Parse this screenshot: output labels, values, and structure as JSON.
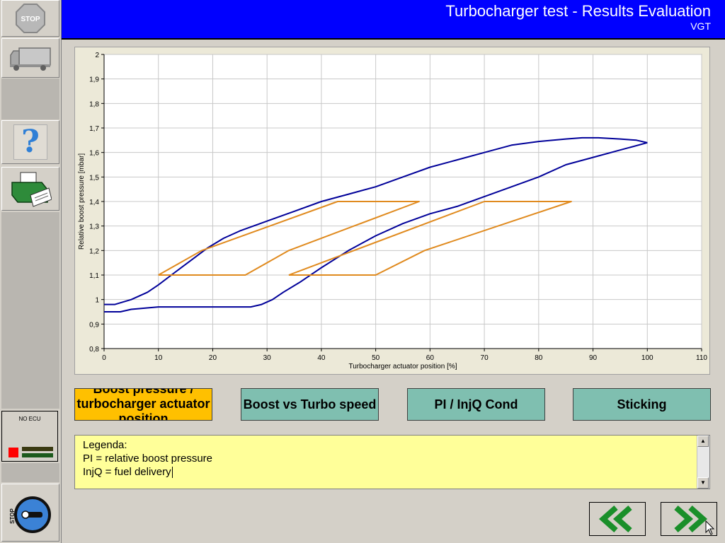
{
  "header": {
    "title": "Turbocharger test - Results Evaluation",
    "subtitle": "VGT",
    "background": "#0000ff"
  },
  "sidebar": {
    "stop_label": "STOP",
    "help_glyph": "?",
    "ecu_label": "NO ECU",
    "bottom_stop_label": "STOP"
  },
  "tabs": [
    {
      "label": "Boost pressure / turbocharger actuator position",
      "active": true
    },
    {
      "label": "Boost vs Turbo speed",
      "active": false
    },
    {
      "label": "PI / InjQ Cond",
      "active": false
    },
    {
      "label": "Sticking",
      "active": false
    }
  ],
  "legend": {
    "lines": [
      "Legenda:",
      "PI = relative boost pressure",
      "InjQ = fuel delivery"
    ]
  },
  "colors": {
    "measured": "#000099",
    "tolerance": "#e08a1e",
    "tab": "#7fbfb0",
    "tab_active": "#ffc000",
    "legend_bg": "#ffff99"
  },
  "chart_data": {
    "type": "line",
    "xlabel": "Turbocharger actuator position [%]",
    "ylabel": "Relative boost pressure [mbar]",
    "xlim": [
      0,
      110
    ],
    "ylim": [
      0.8,
      2
    ],
    "xticks": [
      0,
      10,
      20,
      30,
      40,
      50,
      60,
      70,
      80,
      90,
      100,
      110
    ],
    "yticks": [
      0.8,
      0.9,
      1,
      1.1,
      1.2,
      1.3,
      1.4,
      1.5,
      1.6,
      1.7,
      1.8,
      1.9,
      2
    ],
    "ytick_labels": [
      "0,8",
      "0,9",
      "1",
      "1,1",
      "1,2",
      "1,3",
      "1,4",
      "1,5",
      "1,6",
      "1,7",
      "1,8",
      "1,9",
      "2"
    ],
    "grid": true,
    "series": [
      {
        "color": "#000099",
        "x": [
          0,
          2,
          5,
          8,
          10,
          13,
          16,
          19,
          22,
          25,
          30,
          35,
          40,
          45,
          50,
          55,
          60,
          65,
          70,
          75,
          80,
          85,
          88,
          91,
          95,
          98,
          100
        ],
        "y": [
          0.98,
          0.98,
          1.0,
          1.03,
          1.06,
          1.11,
          1.16,
          1.21,
          1.25,
          1.28,
          1.32,
          1.36,
          1.4,
          1.43,
          1.46,
          1.5,
          1.54,
          1.57,
          1.6,
          1.63,
          1.645,
          1.655,
          1.66,
          1.66,
          1.655,
          1.65,
          1.64
        ]
      },
      {
        "color": "#000099",
        "x": [
          100,
          95,
          90,
          85,
          80,
          75,
          70,
          65,
          60,
          55,
          50,
          45,
          40,
          36,
          33,
          31,
          29,
          27,
          25,
          20,
          15,
          10,
          5,
          3,
          0
        ],
        "y": [
          1.64,
          1.61,
          1.58,
          1.55,
          1.5,
          1.46,
          1.42,
          1.38,
          1.35,
          1.31,
          1.26,
          1.2,
          1.13,
          1.07,
          1.03,
          1.0,
          0.98,
          0.97,
          0.97,
          0.97,
          0.97,
          0.97,
          0.96,
          0.95,
          0.95
        ]
      },
      {
        "color": "#e08a1e",
        "x": [
          10,
          18,
          43,
          58,
          34,
          26,
          10
        ],
        "y": [
          1.1,
          1.2,
          1.4,
          1.4,
          1.2,
          1.1,
          1.1
        ]
      },
      {
        "color": "#e08a1e",
        "x": [
          34,
          46,
          70,
          86,
          59,
          50,
          34
        ],
        "y": [
          1.1,
          1.2,
          1.4,
          1.4,
          1.2,
          1.1,
          1.1
        ]
      }
    ]
  }
}
